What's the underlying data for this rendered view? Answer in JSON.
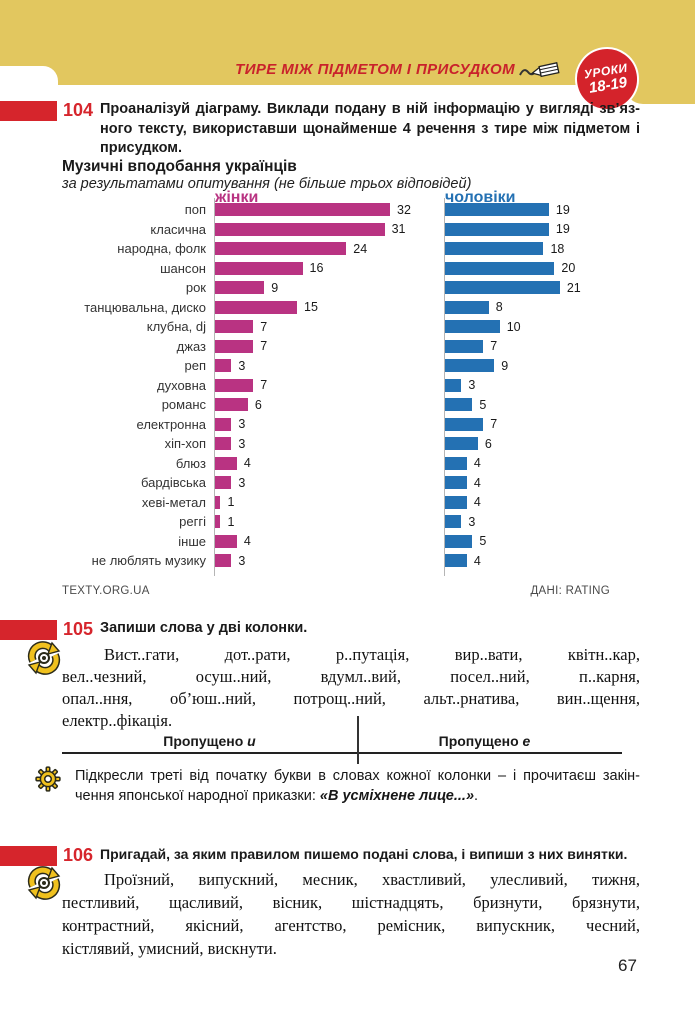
{
  "header": {
    "topic": "ТИРЕ МІЖ ПІДМЕТОМ І ПРИСУДКОМ",
    "badge": {
      "line1": "УРОКИ",
      "line2": "18-19"
    }
  },
  "exercise_104": {
    "number": "104",
    "task_lines": [
      "Проаналізуй діаграму. Виклади подану в ній інформацію у вигляді зв’яз-",
      "ного тексту, використавши щонайменше 4 речення з тире між підметом і",
      "присудком."
    ]
  },
  "chart_data": {
    "type": "bar",
    "orientation": "horizontal",
    "title": "Музичні вподобання українців",
    "subtitle": "за результатами опитування (не більше трьох відповідей)",
    "categories": [
      "поп",
      "класична",
      "народна, фолк",
      "шансон",
      "рок",
      "танцювальна, диско",
      "клубна, dj",
      "джаз",
      "реп",
      "духовна",
      "романс",
      "електронна",
      "хіп-хоп",
      "блюз",
      "бардівська",
      "хеві-метал",
      "реггі",
      "інше",
      "не люблять музику"
    ],
    "series": [
      {
        "name": "жінки",
        "color": "#b93382",
        "values": [
          32,
          31,
          24,
          16,
          9,
          15,
          7,
          7,
          3,
          7,
          6,
          3,
          3,
          4,
          3,
          1,
          1,
          4,
          3
        ]
      },
      {
        "name": "чоловіки",
        "color": "#2471b3",
        "values": [
          19,
          19,
          18,
          20,
          21,
          8,
          10,
          7,
          9,
          3,
          5,
          7,
          6,
          4,
          4,
          4,
          3,
          5,
          4
        ]
      }
    ],
    "value_labels": true,
    "grid": false,
    "xlim": [
      0,
      35
    ],
    "source_left": "TEXTY.ORG.UA",
    "source_right": "ДАНІ: RATING"
  },
  "exercise_105": {
    "number": "105",
    "task": "Запиши слова у дві колонки.",
    "words_lines": [
      "Вист..гати, дот..рати, р..путація, вир..вати, квітн..кар,",
      "вел..чезний, осуш..ний, вдумл..вий, посел..ний, п..карня,",
      "опал..ння, об’юш..ний, потрощ..ний, альт..рнатива, вин..щення,",
      "електр..фікація."
    ],
    "col1_label": "Пропущено ",
    "col1_vowel": "и",
    "col2_label": "Пропущено ",
    "col2_vowel": "е",
    "hint_line1": "Підкресли треті від початку букви в словах кожної колонки – і прочитаєш закін-",
    "hint_line2_pre": "чення японської народної приказки: ",
    "hint_line2_em": "«В усміхнене лице...»",
    "hint_line2_end": "."
  },
  "exercise_106": {
    "number": "106",
    "task": "Пригадай, за яким правилом пишемо подані слова, і випиши з них винятки.",
    "words_lines": [
      "Проїзний, випускний, месник, хвастливий, улесливий, тижня,",
      "пестливий, щасливий, вісник, шістнадцять, бризнути, брязнути,",
      "контрастний, якісний, агентство, ремісник, випускник, чесний,",
      "кістлявий, умисний, вискнути."
    ]
  },
  "page_number": "67",
  "colors": {
    "accent_red": "#d6252c",
    "banner_yellow": "#e2c75f",
    "women": "#b93382",
    "men": "#2471b3"
  }
}
